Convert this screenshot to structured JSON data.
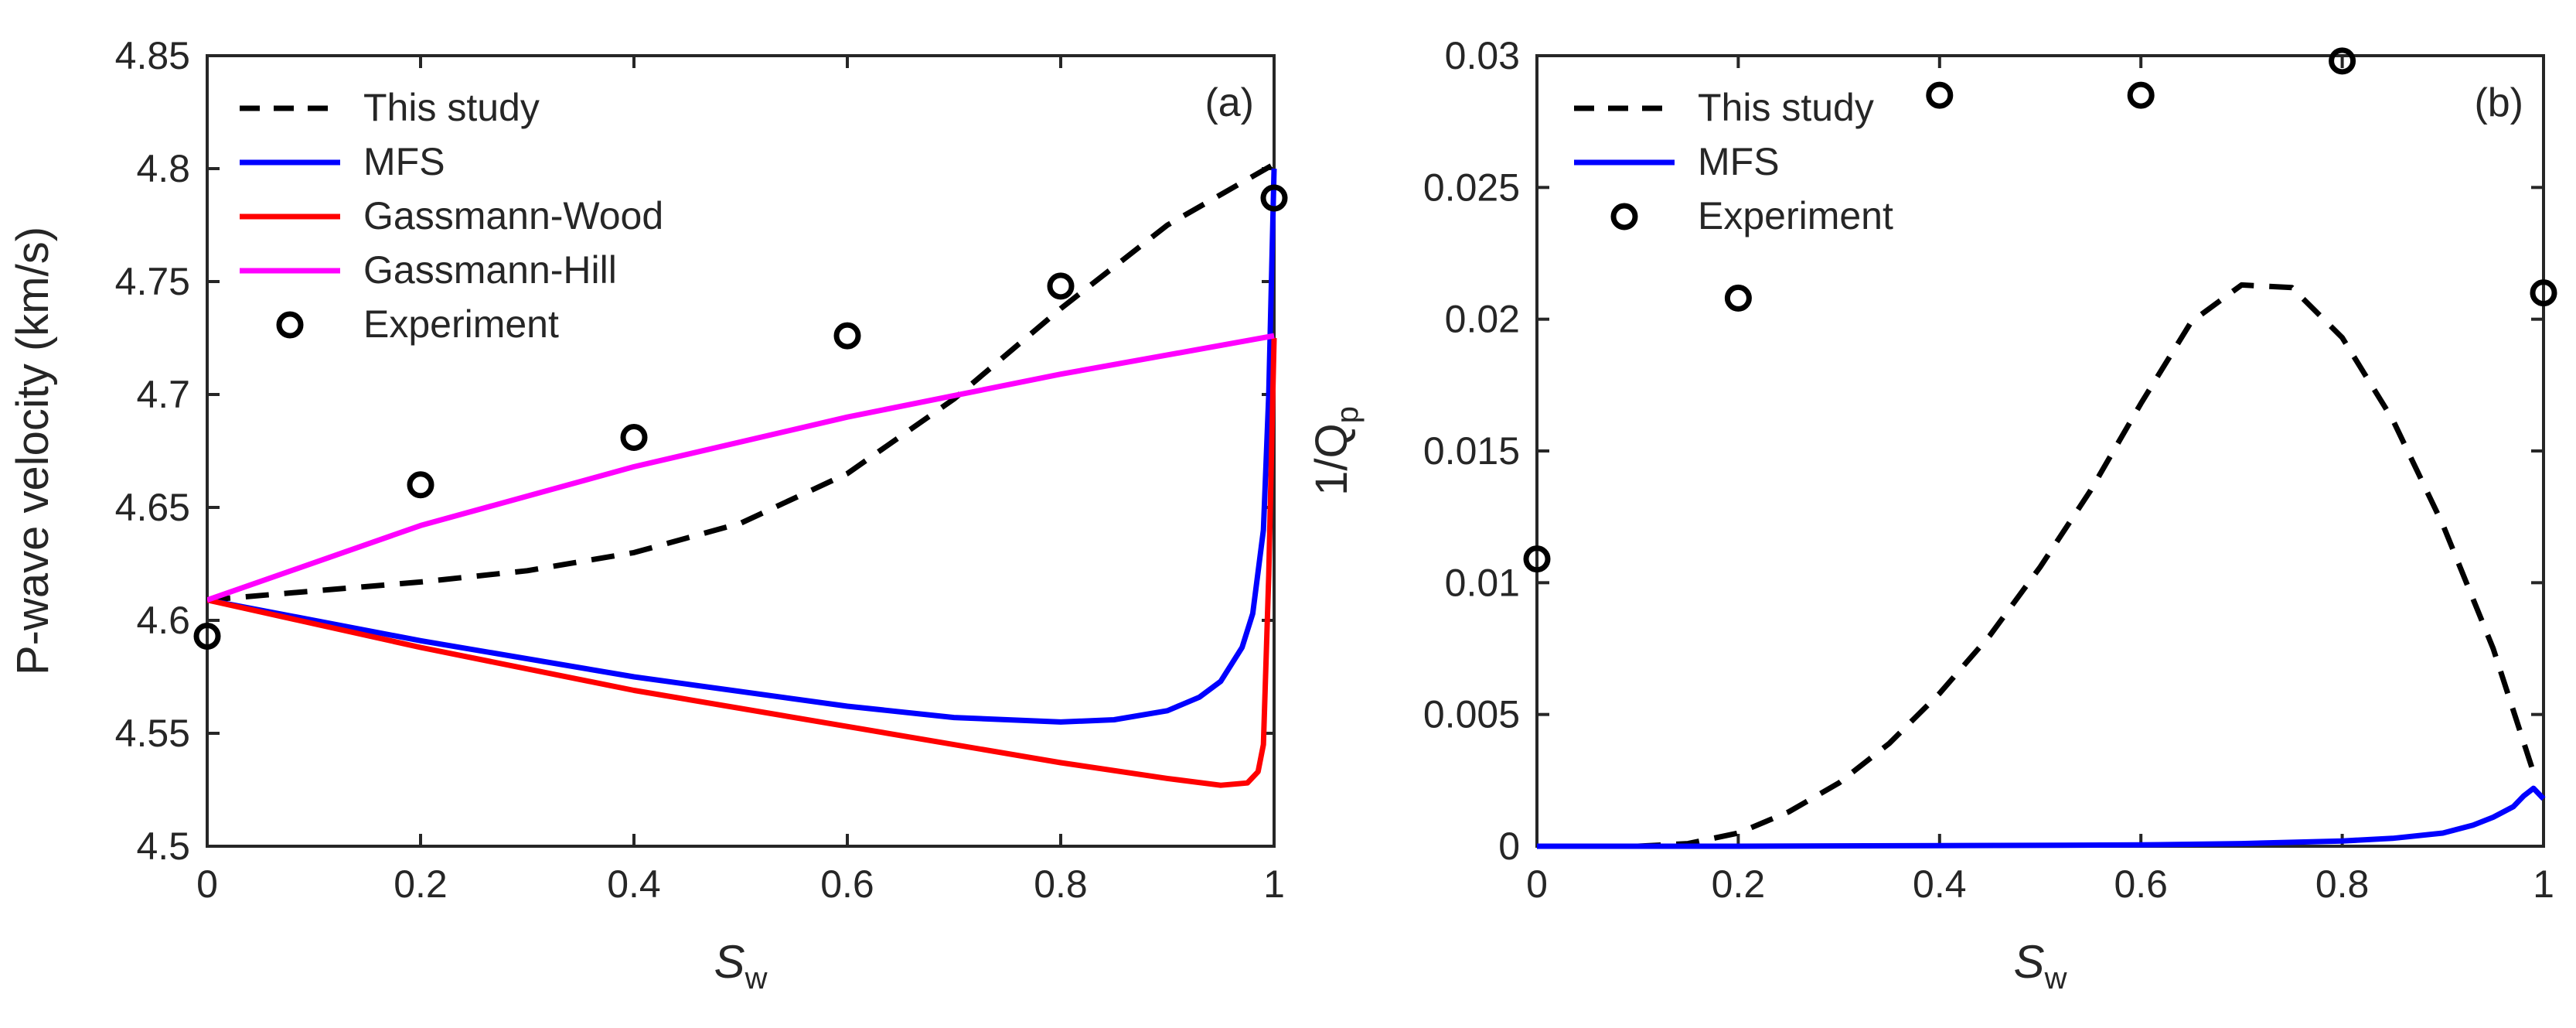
{
  "chart_data": [
    {
      "id": "a",
      "type": "line",
      "panel_label": "(a)",
      "xlabel": "S",
      "xlabel_sub": "w",
      "ylabel": "P-wave velocity (km/s)",
      "xlim": [
        0,
        1
      ],
      "ylim": [
        4.5,
        4.85
      ],
      "xticks": [
        0,
        0.2,
        0.4,
        0.6,
        0.8,
        1
      ],
      "xtick_labels": [
        "0",
        "0.2",
        "0.4",
        "0.6",
        "0.8",
        "1"
      ],
      "yticks": [
        4.5,
        4.55,
        4.6,
        4.65,
        4.7,
        4.75,
        4.8,
        4.85
      ],
      "ytick_labels": [
        "4.5",
        "4.55",
        "4.6",
        "4.65",
        "4.7",
        "4.75",
        "4.8",
        "4.85"
      ],
      "legend_position": "top-left",
      "series": [
        {
          "name": "This study",
          "style": "dashed",
          "color": "#000000",
          "x": [
            0,
            0.1,
            0.2,
            0.3,
            0.4,
            0.5,
            0.6,
            0.7,
            0.8,
            0.9,
            1.0
          ],
          "y": [
            4.609,
            4.613,
            4.617,
            4.622,
            4.63,
            4.643,
            4.665,
            4.698,
            4.738,
            4.775,
            4.802
          ]
        },
        {
          "name": "MFS",
          "style": "solid",
          "color": "#0000ff",
          "x": [
            0,
            0.2,
            0.4,
            0.6,
            0.7,
            0.8,
            0.85,
            0.9,
            0.93,
            0.95,
            0.97,
            0.98,
            0.99,
            0.995,
            1.0
          ],
          "y": [
            4.609,
            4.591,
            4.575,
            4.562,
            4.557,
            4.555,
            4.556,
            4.56,
            4.566,
            4.573,
            4.588,
            4.603,
            4.64,
            4.7,
            4.8
          ]
        },
        {
          "name": "Gassmann-Wood",
          "style": "solid",
          "color": "#ff0000",
          "x": [
            0,
            0.2,
            0.4,
            0.6,
            0.8,
            0.9,
            0.95,
            0.975,
            0.985,
            0.99,
            0.995,
            1.0
          ],
          "y": [
            4.609,
            4.588,
            4.569,
            4.553,
            4.537,
            4.53,
            4.527,
            4.528,
            4.533,
            4.545,
            4.62,
            4.725
          ]
        },
        {
          "name": "Gassmann-Hill",
          "style": "solid",
          "color": "#ff00ff",
          "x": [
            0,
            0.2,
            0.4,
            0.6,
            0.8,
            1.0
          ],
          "y": [
            4.609,
            4.642,
            4.668,
            4.69,
            4.709,
            4.726
          ]
        },
        {
          "name": "Experiment",
          "style": "marker",
          "color": "#000000",
          "x": [
            0,
            0.2,
            0.4,
            0.6,
            0.8,
            1.0
          ],
          "y": [
            4.593,
            4.66,
            4.681,
            4.726,
            4.748,
            4.787
          ]
        }
      ]
    },
    {
      "id": "b",
      "type": "line",
      "panel_label": "(b)",
      "xlabel": "S",
      "xlabel_sub": "w",
      "ylabel": "1/Q",
      "ylabel_sub": "p",
      "xlim": [
        0,
        1
      ],
      "ylim": [
        0,
        0.03
      ],
      "xticks": [
        0,
        0.2,
        0.4,
        0.6,
        0.8,
        1
      ],
      "xtick_labels": [
        "0",
        "0.2",
        "0.4",
        "0.6",
        "0.8",
        "1"
      ],
      "yticks": [
        0,
        0.005,
        0.01,
        0.015,
        0.02,
        0.025,
        0.03
      ],
      "ytick_labels": [
        "0",
        "0.005",
        "0.01",
        "0.015",
        "0.02",
        "0.025",
        "0.03"
      ],
      "legend_position": "top-left",
      "series": [
        {
          "name": "This study",
          "style": "dashed",
          "color": "#000000",
          "x": [
            0.1,
            0.15,
            0.2,
            0.25,
            0.3,
            0.35,
            0.4,
            0.45,
            0.5,
            0.55,
            0.6,
            0.65,
            0.7,
            0.75,
            0.8,
            0.85,
            0.9,
            0.95,
            0.99
          ],
          "y": [
            0.0,
            0.0001,
            0.0005,
            0.0013,
            0.0024,
            0.0039,
            0.0058,
            0.008,
            0.0106,
            0.0135,
            0.0168,
            0.0199,
            0.0213,
            0.0212,
            0.0193,
            0.0162,
            0.0122,
            0.0075,
            0.0028
          ]
        },
        {
          "name": "MFS",
          "style": "solid",
          "color": "#0000ff",
          "x": [
            0,
            0.2,
            0.4,
            0.6,
            0.7,
            0.8,
            0.85,
            0.9,
            0.93,
            0.95,
            0.97,
            0.98,
            0.99,
            1.0
          ],
          "y": [
            0,
            0.0,
            2e-05,
            5e-05,
            0.0001,
            0.0002,
            0.0003,
            0.0005,
            0.0008,
            0.0011,
            0.0015,
            0.0019,
            0.0022,
            0.0018
          ]
        },
        {
          "name": "Experiment",
          "style": "marker",
          "color": "#000000",
          "x": [
            0,
            0.2,
            0.4,
            0.6,
            0.8,
            1.0
          ],
          "y": [
            0.0109,
            0.0208,
            0.0285,
            0.0285,
            0.0298,
            0.021
          ]
        }
      ]
    }
  ]
}
